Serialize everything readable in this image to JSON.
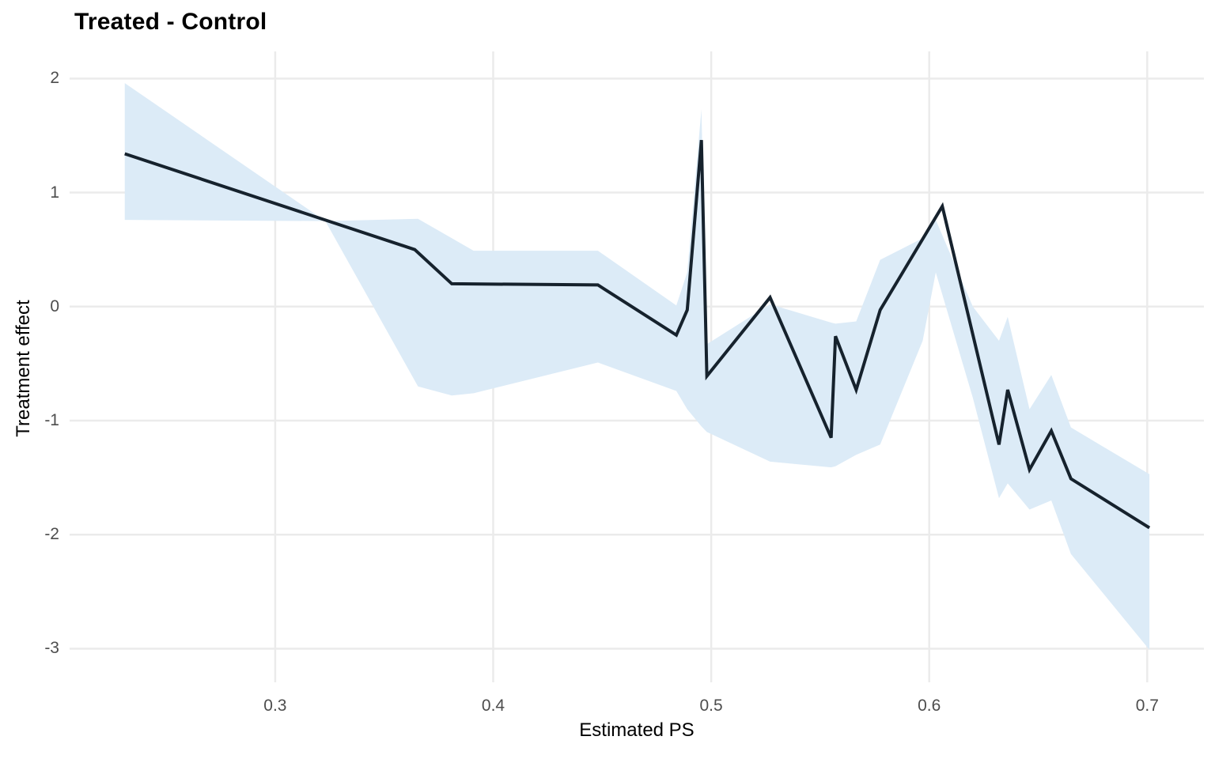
{
  "chart_data": {
    "type": "line",
    "title": "Treated - Control",
    "xlabel": "Estimated PS",
    "ylabel": "Treatment effect",
    "xlim": [
      0.2057,
      0.726
    ],
    "ylim": [
      -3.295,
      2.238
    ],
    "x_ticks": [
      0.3,
      0.4,
      0.5,
      0.6,
      0.7
    ],
    "x_tick_labels": [
      "0.3",
      "0.4",
      "0.5",
      "0.6",
      "0.7"
    ],
    "y_ticks": [
      2,
      1,
      0,
      -1,
      -2,
      -3
    ],
    "y_tick_labels": [
      "2",
      "1",
      "0",
      "-1",
      "-2",
      "-3"
    ],
    "grid": true,
    "legend_position": "none",
    "panel_background": "#ffffff",
    "grid_color": "#ebebeb",
    "tick_label_color": "#4d4d4d",
    "series": [
      {
        "name": "treatment_effect_estimate",
        "type": "line",
        "color": "#16222d",
        "width": 4,
        "x": [
          0.231,
          0.364,
          0.381,
          0.448,
          0.484,
          0.489,
          0.4955,
          0.498,
          0.527,
          0.555,
          0.557,
          0.5665,
          0.5775,
          0.606,
          0.632,
          0.636,
          0.646,
          0.656,
          0.665,
          0.701
        ],
        "y": [
          1.34,
          0.5,
          0.2,
          0.19,
          -0.25,
          -0.03,
          1.46,
          -0.61,
          0.08,
          -1.15,
          -0.26,
          -0.73,
          -0.03,
          0.88,
          -1.21,
          -0.73,
          -1.43,
          -1.09,
          -1.51,
          -1.94
        ]
      },
      {
        "name": "confidence_band",
        "type": "ribbon",
        "color": "#dcebf7",
        "x": [
          0.231,
          0.323,
          0.3655,
          0.381,
          0.391,
          0.448,
          0.484,
          0.489,
          0.4955,
          0.498,
          0.527,
          0.555,
          0.557,
          0.5665,
          0.5775,
          0.597,
          0.603,
          0.62,
          0.632,
          0.636,
          0.646,
          0.656,
          0.665,
          0.701
        ],
        "upper": [
          1.96,
          0.75,
          0.77,
          0.6,
          0.49,
          0.49,
          0.01,
          0.3,
          1.73,
          -0.33,
          0.02,
          -0.14,
          -0.15,
          -0.13,
          0.41,
          0.6,
          0.76,
          0.0,
          -0.3,
          -0.09,
          -0.9,
          -0.6,
          -1.06,
          -1.47
        ],
        "lower": [
          0.76,
          0.75,
          -0.7,
          -0.78,
          -0.76,
          -0.49,
          -0.74,
          -0.9,
          -1.05,
          -1.1,
          -1.36,
          -1.41,
          -1.4,
          -1.3,
          -1.21,
          -0.3,
          0.3,
          -0.8,
          -1.68,
          -1.55,
          -1.78,
          -1.7,
          -2.17,
          -3.01
        ]
      }
    ]
  }
}
